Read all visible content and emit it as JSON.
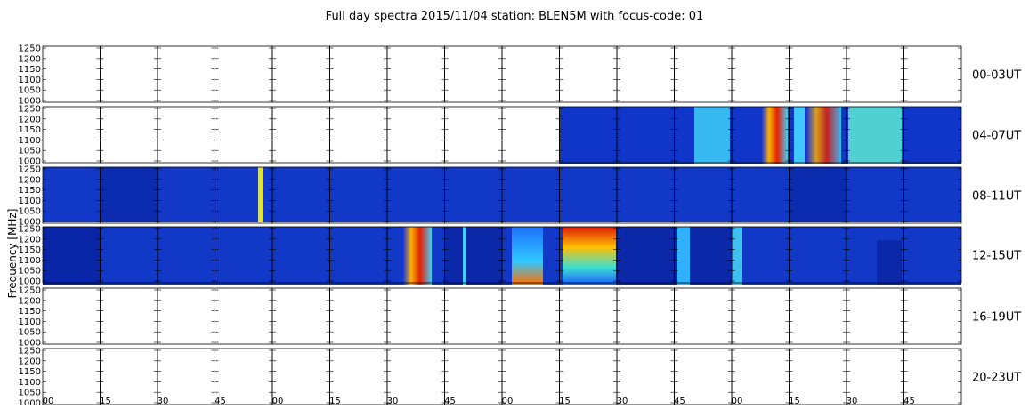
{
  "title": "Full day spectra 2015/11/04 station: BLEN5M with focus-code: 01",
  "y_axis_label": "Frequency [MHz]",
  "y_ticks": [
    1000,
    1050,
    1100,
    1150,
    1200,
    1250
  ],
  "x_tick_labels": [
    "00",
    "15",
    "30",
    "45",
    "00",
    "15",
    "30",
    "45",
    "00",
    "15",
    "30",
    "45",
    "00",
    "15",
    "30",
    "45"
  ],
  "rows": [
    {
      "label": "00-03UT"
    },
    {
      "label": "04-07UT"
    },
    {
      "label": "08-11UT"
    },
    {
      "label": "12-15UT"
    },
    {
      "label": "16-19UT"
    },
    {
      "label": "20-23UT"
    }
  ]
}
